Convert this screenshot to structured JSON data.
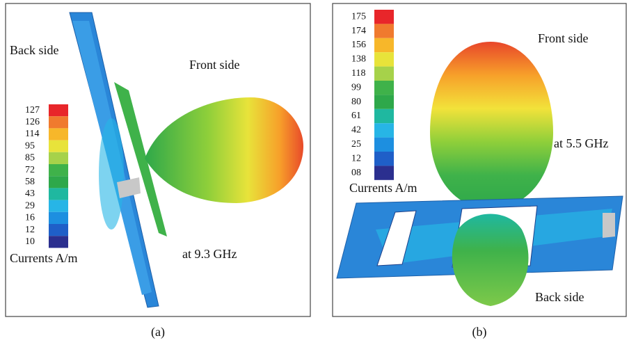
{
  "panels": [
    {
      "caption": "(a)",
      "back_label": "Back side",
      "front_label": "Front side",
      "frequency": "at 9.3 GHz",
      "legend_title": "Currents A/m",
      "scale": [
        "127",
        "126",
        "114",
        "95",
        "85",
        "72",
        "58",
        "43",
        "29",
        "16",
        "12",
        "10"
      ]
    },
    {
      "caption": "(b)",
      "back_label": "Back side",
      "front_label": "Front side",
      "frequency": "at 5.5 GHz",
      "legend_title": "Currents A/m",
      "scale": [
        "175",
        "174",
        "156",
        "138",
        "118",
        "99",
        "80",
        "61",
        "42",
        "25",
        "12",
        "08"
      ]
    }
  ]
}
